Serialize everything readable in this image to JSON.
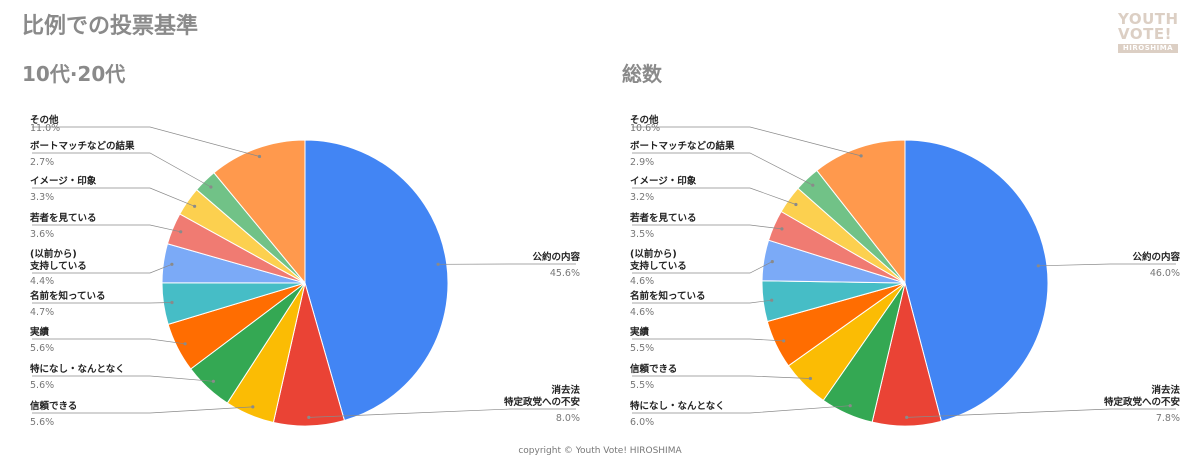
{
  "page_title": "比例での投票基準",
  "logo": {
    "line1": "YOUTH",
    "line2": "VOTE!",
    "line3": "HIROSHIMA"
  },
  "footer": "copyright © Youth Vote! HIROSHIMA",
  "colors": {
    "公約の内容": "#4285f4",
    "消去法 特定政党への不安": "#ea4335",
    "信頼できる": "#fbbc04",
    "特になし・なんとなく": "#34a853",
    "実績": "#ff6d01",
    "名前を知っている": "#46bdc6",
    "(以前から) 支持している": "#7baaf7",
    "若者を見ている": "#f07b72",
    "イメージ・印象": "#fcd04f",
    "ボートマッチなどの結果": "#71c287",
    "その他": "#ff994d"
  },
  "chart_data": [
    {
      "type": "pie",
      "subtitle": "10代·20代",
      "slices": [
        {
          "label": "公約の内容",
          "value": 45.6,
          "pct": "45.6%"
        },
        {
          "label": "消去法 特定政党への不安",
          "value": 8.0,
          "pct": "8.0%"
        },
        {
          "label": "信頼できる",
          "value": 5.6,
          "pct": "5.6%"
        },
        {
          "label": "特になし・なんとなく",
          "value": 5.6,
          "pct": "5.6%"
        },
        {
          "label": "実績",
          "value": 5.6,
          "pct": "5.6%"
        },
        {
          "label": "名前を知っている",
          "value": 4.7,
          "pct": "4.7%"
        },
        {
          "label": "(以前から) 支持している",
          "value": 4.4,
          "pct": "4.4%"
        },
        {
          "label": "若者を見ている",
          "value": 3.6,
          "pct": "3.6%"
        },
        {
          "label": "イメージ・印象",
          "value": 3.3,
          "pct": "3.3%"
        },
        {
          "label": "ボートマッチなどの結果",
          "value": 2.7,
          "pct": "2.7%"
        },
        {
          "label": "その他",
          "value": 11.0,
          "pct": "11.0%"
        }
      ]
    },
    {
      "type": "pie",
      "subtitle": "総数",
      "slices": [
        {
          "label": "公約の内容",
          "value": 46.0,
          "pct": "46.0%"
        },
        {
          "label": "消去法 特定政党への不安",
          "value": 7.8,
          "pct": "7.8%"
        },
        {
          "label": "特になし・なんとなく",
          "value": 6.0,
          "pct": "6.0%"
        },
        {
          "label": "信頼できる",
          "value": 5.5,
          "pct": "5.5%"
        },
        {
          "label": "実績",
          "value": 5.5,
          "pct": "5.5%"
        },
        {
          "label": "名前を知っている",
          "value": 4.6,
          "pct": "4.6%"
        },
        {
          "label": "(以前から) 支持している",
          "value": 4.6,
          "pct": "4.6%"
        },
        {
          "label": "若者を見ている",
          "value": 3.5,
          "pct": "3.5%"
        },
        {
          "label": "イメージ・印象",
          "value": 3.2,
          "pct": "3.2%"
        },
        {
          "label": "ボートマッチなどの結果",
          "value": 2.9,
          "pct": "2.9%"
        },
        {
          "label": "その他",
          "value": 10.6,
          "pct": "10.6%"
        }
      ]
    }
  ]
}
